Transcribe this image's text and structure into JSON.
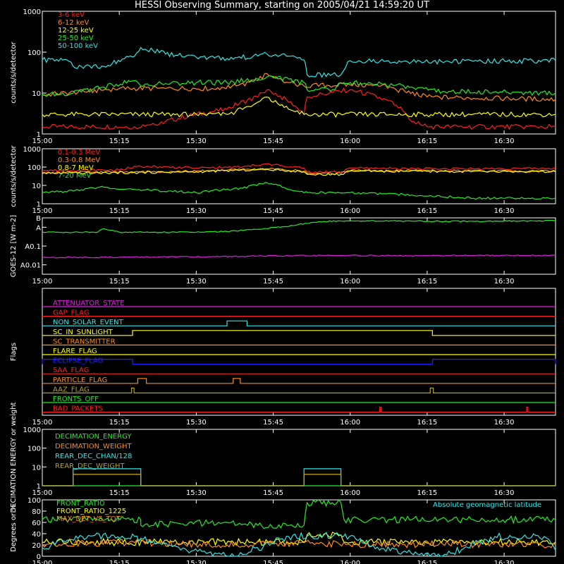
{
  "title": "HESSI Observing Summary, starting on 2005/04/21 14:59:20 UT",
  "colors": {
    "background": "#000000",
    "axis": "#ffffff",
    "red": "#ff2020",
    "orange": "#ff8c1a",
    "yellow": "#ffff00",
    "green": "#22ee22",
    "cyan": "#33e6e6",
    "magenta": "#e020e0",
    "blue": "#2020ff",
    "olive": "#b0a030"
  },
  "chart_data": [
    {
      "id": "lowE",
      "type": "line",
      "ylabel": "counts/s/detector",
      "ylog": true,
      "ylim": [
        1,
        1000
      ],
      "yticks": [
        1,
        10,
        100,
        1000
      ],
      "yticklabels": [
        "1",
        "10",
        "100",
        "1000"
      ],
      "xlim": [
        15.0,
        16.667
      ],
      "xticks": [
        "15:00",
        "15:15",
        "15:30",
        "15:45",
        "16:00",
        "16:15",
        "16:30"
      ],
      "series": [
        {
          "name": "3-6 keV",
          "color": "#ff2020",
          "x": [
            15.0,
            15.3,
            15.4,
            15.6,
            15.7,
            15.73,
            15.8,
            15.85,
            15.86,
            16.0,
            16.15,
            16.2,
            16.25,
            16.667
          ],
          "values": [
            1.5,
            1.5,
            2,
            4,
            8,
            12,
            6,
            3,
            8,
            12,
            5,
            2,
            1.5,
            1.5
          ]
        },
        {
          "name": "6-12 keV",
          "color": "#ff8c1a",
          "x": [
            15.0,
            15.15,
            15.25,
            15.4,
            15.55,
            15.63,
            15.7,
            15.73,
            15.8,
            15.85,
            16.0,
            16.1,
            16.15,
            16.25,
            16.667
          ],
          "values": [
            9,
            11,
            13,
            13,
            13,
            15,
            20,
            30,
            18,
            15,
            16,
            15,
            12,
            8,
            7
          ]
        },
        {
          "name": "12-25 keV",
          "color": "#ffff00",
          "x": [
            15.0,
            15.5,
            15.6,
            15.65,
            15.7,
            15.73,
            15.75,
            15.8,
            15.85,
            16.667
          ],
          "values": [
            3,
            3,
            3,
            4,
            6,
            8,
            6,
            4,
            3,
            3
          ]
        },
        {
          "name": "25-50 keV",
          "color": "#22ee22",
          "x": [
            15.0,
            15.1,
            15.2,
            15.3,
            15.32,
            15.4,
            15.5,
            15.6,
            15.7,
            15.73,
            15.85,
            15.86,
            15.95,
            15.97,
            16.0,
            16.1,
            16.2,
            16.3,
            16.667
          ],
          "values": [
            9,
            10,
            14,
            20,
            15,
            17,
            18,
            18,
            22,
            25,
            18,
            12,
            12,
            18,
            18,
            17,
            14,
            11,
            10
          ]
        },
        {
          "name": "50-100 keV",
          "color": "#33e6e6",
          "x": [
            15.0,
            15.08,
            15.1,
            15.2,
            15.3,
            15.32,
            15.4,
            15.5,
            15.6,
            15.7,
            15.73,
            15.8,
            15.85,
            15.86,
            15.97,
            16.0,
            16.2,
            16.4,
            16.667
          ],
          "values": [
            65,
            65,
            45,
            45,
            80,
            130,
            90,
            75,
            70,
            80,
            90,
            80,
            65,
            28,
            28,
            62,
            58,
            60,
            62
          ]
        }
      ]
    },
    {
      "id": "highE",
      "type": "line",
      "ylabel": "counts/s/detector",
      "ylog": true,
      "ylim": [
        1,
        1000
      ],
      "yticks": [
        1,
        10,
        100,
        1000
      ],
      "yticklabels": [
        "1",
        "10",
        "100",
        "1000"
      ],
      "xlim": [
        15.0,
        16.667
      ],
      "xticks": [
        "15:00",
        "15:15",
        "15:30",
        "15:45",
        "16:00",
        "16:15",
        "16:30"
      ],
      "series": [
        {
          "name": "0.1-0.3 MeV",
          "color": "#ff2020",
          "x": [
            15.0,
            15.25,
            15.32,
            15.5,
            15.65,
            15.73,
            15.8,
            15.85,
            15.86,
            15.97,
            16.0,
            16.3,
            16.667
          ],
          "values": [
            65,
            70,
            110,
            90,
            100,
            150,
            100,
            90,
            55,
            55,
            90,
            80,
            85
          ]
        },
        {
          "name": "0.3-0.8 MeV",
          "color": "#ff8c1a",
          "x": [
            15.0,
            15.3,
            15.5,
            15.73,
            15.85,
            15.86,
            15.97,
            16.0,
            16.667
          ],
          "values": [
            50,
            55,
            60,
            80,
            60,
            45,
            45,
            65,
            60
          ]
        },
        {
          "name": "0.8-7 MeV",
          "color": "#ffff00",
          "x": [
            15.0,
            15.3,
            15.5,
            15.73,
            15.85,
            15.86,
            15.97,
            16.0,
            16.667
          ],
          "values": [
            45,
            50,
            55,
            75,
            55,
            40,
            40,
            60,
            55
          ]
        },
        {
          "name": "7-20 MeV",
          "color": "#22ee22",
          "x": [
            15.0,
            15.1,
            15.2,
            15.3,
            15.5,
            15.65,
            15.73,
            15.8,
            15.85,
            16.0,
            16.2,
            16.4,
            16.667
          ],
          "values": [
            4,
            5,
            8,
            6,
            4,
            7,
            14,
            6,
            4,
            4,
            3,
            2,
            2
          ]
        }
      ]
    },
    {
      "id": "goes",
      "type": "line",
      "ylabel": "GOES-12 [W m-2]",
      "ylog": true,
      "ylim": [
        0.001,
        1000
      ],
      "yticks": [
        0.01,
        1,
        100,
        1000
      ],
      "yticklabels": [
        "A0.01",
        "A0.1",
        "A",
        "B"
      ],
      "xlim": [
        15.0,
        16.667
      ],
      "xticks": [
        "15:00",
        "15:15",
        "15:30",
        "15:45",
        "16:00",
        "16:15",
        "16:30"
      ],
      "series": [
        {
          "color": "#22ee22",
          "x": [
            15.0,
            15.18,
            15.2,
            15.25,
            15.5,
            15.6,
            15.7,
            15.8,
            15.86,
            15.9,
            16.0,
            16.2,
            16.4,
            16.6,
            16.667
          ],
          "values": [
            30,
            30,
            70,
            30,
            30,
            35,
            60,
            120,
            250,
            400,
            500,
            450,
            420,
            480,
            500
          ]
        },
        {
          "color": "#e020e0",
          "x": [
            15.0,
            15.5,
            15.8,
            16.0,
            16.2,
            16.4,
            16.667
          ],
          "values": [
            0.06,
            0.07,
            0.09,
            0.1,
            0.09,
            0.1,
            0.1
          ]
        }
      ]
    },
    {
      "id": "flags",
      "type": "line",
      "ylabel": "Flags",
      "xlim": [
        15.0,
        16.667
      ],
      "xticks": [
        "15:00",
        "15:15",
        "15:30",
        "15:45",
        "16:00",
        "16:15",
        "16:30"
      ],
      "flags": [
        {
          "name": "ATTENUATOR_STATE",
          "color": "#e020e0",
          "on": []
        },
        {
          "name": "GAP_FLAG",
          "color": "#ff2020",
          "on": []
        },
        {
          "name": "NON_SOLAR_EVENT",
          "color": "#33e6e6",
          "on": [
            [
              15.6,
              15.665
            ]
          ]
        },
        {
          "name": "SC_IN_SUNLIGHT",
          "color": "#ffff00",
          "on": [
            [
              15.293,
              16.267
            ]
          ]
        },
        {
          "name": "SC_TRANSMITTER",
          "color": "#ff8c1a",
          "on": []
        },
        {
          "name": "FLARE_FLAG",
          "color": "#ffff00",
          "on": []
        },
        {
          "name": "ECLIPSE_FLAG",
          "color": "#2020ff",
          "on": [
            [
              15.0,
              15.293
            ],
            [
              16.267,
              16.667
            ]
          ]
        },
        {
          "name": "SAA_FLAG",
          "color": "#ff2020",
          "on": []
        },
        {
          "name": "PARTICLE_FLAG",
          "color": "#ff8c1a",
          "on": [
            [
              15.31,
              15.338
            ],
            [
              15.62,
              15.643
            ]
          ]
        },
        {
          "name": "AAZ_FLAG",
          "color": "#b0a030",
          "on": [
            [
              15.29,
              15.298
            ],
            [
              16.26,
              16.27
            ]
          ]
        },
        {
          "name": "FRONTS_OFF",
          "color": "#22ee22",
          "on": []
        },
        {
          "name": "BAD_PACKETS",
          "color": "#ff2020",
          "on": [
            [
              16.096,
              16.1
            ],
            [
              16.573,
              16.577
            ]
          ]
        }
      ]
    },
    {
      "id": "decim",
      "type": "line",
      "ylabel": "DECIMATION ENERGY or weight",
      "ylog": true,
      "ylim": [
        1,
        1000
      ],
      "yticks": [
        1,
        10,
        100,
        1000
      ],
      "yticklabels": [
        "1",
        "10",
        "100",
        "1000"
      ],
      "xlim": [
        15.0,
        16.667
      ],
      "xticks": [
        "15:00",
        "15:15",
        "15:30",
        "15:45",
        "16:00",
        "16:15",
        "16:30"
      ],
      "series": [
        {
          "name": "DECIMATION_ENERGY",
          "color": "#22ee22",
          "x": [
            15.0,
            16.667
          ],
          "values": [
            1,
            1
          ]
        },
        {
          "name": "DECIMATION_WEIGHT",
          "color": "#ff8c1a",
          "x": [
            15.0,
            15.1,
            15.1,
            15.32,
            15.32,
            15.85,
            15.85,
            15.97,
            15.97,
            16.667
          ],
          "values": [
            1,
            1,
            4,
            4,
            1,
            1,
            4,
            4,
            1,
            1
          ]
        },
        {
          "name": "REAR_DEC_CHAN/128",
          "color": "#33e6e6",
          "x": [
            15.0,
            15.1,
            15.1,
            15.32,
            15.32,
            15.85,
            15.85,
            15.97,
            15.97,
            16.667
          ],
          "values": [
            1,
            1,
            8,
            8,
            1,
            1,
            8,
            8,
            1,
            1
          ]
        },
        {
          "name": "REAR_DEC_WEIGHT",
          "color": "#b0a030",
          "x": [
            15.0,
            15.1,
            15.1,
            15.32,
            15.32,
            15.85,
            15.85,
            15.97,
            15.97,
            16.667
          ],
          "values": [
            1,
            1,
            4,
            4,
            1,
            1,
            4,
            4,
            1,
            1
          ]
        }
      ]
    },
    {
      "id": "ratio",
      "type": "line",
      "ylabel": "Degrees or %",
      "ylim": [
        0,
        100
      ],
      "yticks": [
        0,
        20,
        40,
        60,
        80,
        100
      ],
      "yticklabels": [
        "0",
        "20",
        "40",
        "60",
        "80",
        "100"
      ],
      "xlim": [
        15.0,
        16.667
      ],
      "xticks": [
        "15:00",
        "15:15",
        "15:30",
        "15:45",
        "16:00",
        "16:15",
        "16:30"
      ],
      "annotation": "Absolute geomagnetic latitude",
      "series": [
        {
          "name": "FRONT_RATIO",
          "color": "#22ee22",
          "x": [
            15.0,
            15.32,
            15.32,
            15.6,
            15.7,
            15.85,
            15.86,
            15.97,
            15.98,
            16.2,
            16.4,
            16.667
          ],
          "values": [
            65,
            65,
            55,
            60,
            55,
            55,
            95,
            95,
            65,
            65,
            65,
            65
          ]
        },
        {
          "name": "FRONT_RATIO_1225",
          "color": "#ffff00",
          "x": [
            15.0,
            15.85,
            15.86,
            15.97,
            15.98,
            16.667
          ],
          "values": [
            25,
            25,
            38,
            38,
            25,
            25
          ]
        },
        {
          "name": "MAX_DET_VS_TOT",
          "color": "#ff8c1a",
          "x": [
            15.0,
            15.3,
            15.6,
            15.85,
            16.0,
            16.3,
            16.667
          ],
          "values": [
            22,
            24,
            20,
            24,
            20,
            22,
            20
          ]
        },
        {
          "name": "",
          "color": "#33e6e6",
          "x": [
            15.0,
            15.15,
            15.3,
            15.47,
            15.63,
            15.8,
            15.97,
            16.13,
            16.3,
            16.47,
            16.63,
            16.667
          ],
          "values": [
            15,
            37,
            35,
            10,
            0,
            35,
            37,
            10,
            0,
            35,
            35,
            10
          ]
        }
      ]
    }
  ]
}
